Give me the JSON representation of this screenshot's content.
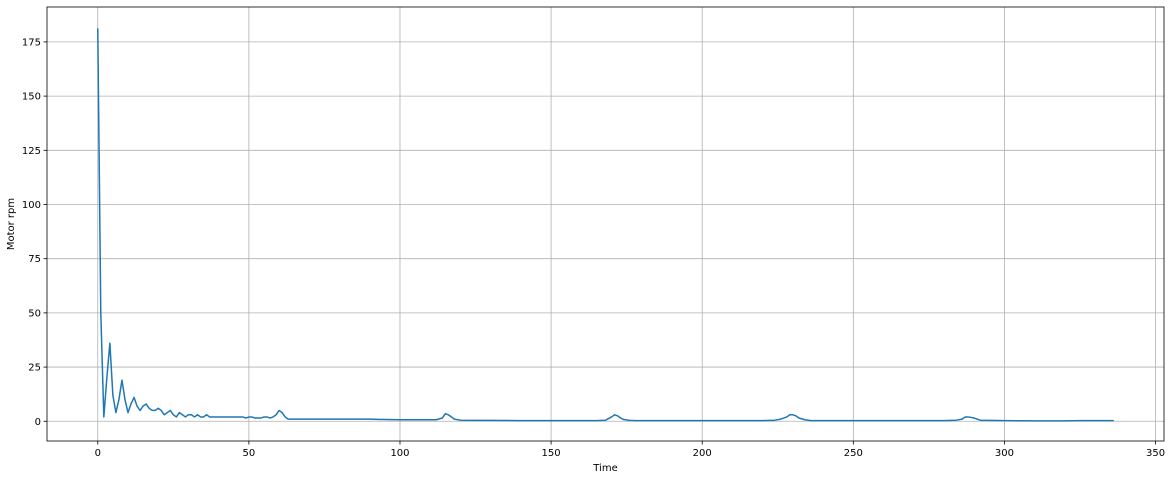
{
  "chart_data": {
    "type": "line",
    "title": "",
    "xlabel": "Time",
    "ylabel": "Motor rpm",
    "xlim": [
      -16.8,
      352.8
    ],
    "ylim": [
      -9.1,
      191.1
    ],
    "xticks": [
      0,
      50,
      100,
      150,
      200,
      250,
      300,
      350
    ],
    "yticks": [
      0,
      25,
      50,
      75,
      100,
      125,
      150,
      175
    ],
    "grid": true,
    "legend": "none",
    "series": [
      {
        "color": "#1f77b4",
        "x": [
          0,
          1,
          2,
          3,
          4,
          5,
          6,
          7,
          8,
          9,
          10,
          11,
          12,
          13,
          14,
          15,
          16,
          17,
          18,
          19,
          20,
          21,
          22,
          23,
          24,
          25,
          26,
          27,
          28,
          29,
          30,
          31,
          32,
          33,
          34,
          35,
          36,
          37,
          38,
          39,
          40,
          41,
          42,
          43,
          44,
          45,
          46,
          47,
          48,
          49,
          50,
          51,
          52,
          53,
          54,
          55,
          56,
          57,
          58,
          59,
          60,
          61,
          62,
          63,
          64,
          65,
          66,
          67,
          68,
          69,
          70,
          71,
          72,
          73,
          74,
          75,
          76,
          77,
          78,
          79,
          80,
          85,
          90,
          95,
          100,
          105,
          110,
          112,
          114,
          115,
          116,
          118,
          120,
          125,
          130,
          140,
          150,
          160,
          165,
          168,
          170,
          171,
          172,
          173,
          174,
          176,
          178,
          180,
          190,
          200,
          210,
          220,
          224,
          226,
          228,
          229,
          230,
          231,
          232,
          234,
          236,
          240,
          250,
          260,
          270,
          280,
          284,
          286,
          287,
          288,
          290,
          292,
          300,
          310,
          320,
          325,
          330,
          335,
          336
        ],
        "y": [
          181,
          50,
          2,
          20,
          36,
          12,
          4,
          10,
          19,
          10,
          4,
          8,
          11,
          7,
          5,
          7,
          8,
          6,
          5,
          5,
          6,
          5,
          3,
          4,
          5,
          3,
          2,
          4,
          3,
          2,
          3,
          3,
          2,
          3,
          2,
          2,
          3,
          2,
          2,
          2,
          2,
          2,
          2,
          2,
          2,
          2,
          2,
          2,
          2,
          1.5,
          2,
          2,
          1.5,
          1.5,
          1.5,
          2,
          2,
          1.5,
          2,
          3,
          5,
          4,
          2,
          1,
          1,
          1,
          1,
          1,
          1,
          1,
          1,
          1,
          1,
          1,
          1,
          1,
          1,
          1,
          1,
          1,
          1,
          1,
          1,
          0.8,
          0.7,
          0.7,
          0.7,
          0.7,
          1.5,
          3.5,
          3,
          1,
          0.5,
          0.4,
          0.4,
          0.3,
          0.3,
          0.3,
          0.3,
          0.5,
          2,
          3,
          2.5,
          1.5,
          0.8,
          0.4,
          0.3,
          0.3,
          0.3,
          0.3,
          0.3,
          0.3,
          0.5,
          1,
          2,
          3,
          3,
          2.5,
          1.5,
          0.7,
          0.3,
          0.3,
          0.3,
          0.3,
          0.3,
          0.3,
          0.5,
          1,
          2,
          2,
          1.5,
          0.5,
          0.3,
          0.2,
          0.2,
          0.3,
          0.3,
          0.3,
          0.3
        ]
      }
    ]
  }
}
